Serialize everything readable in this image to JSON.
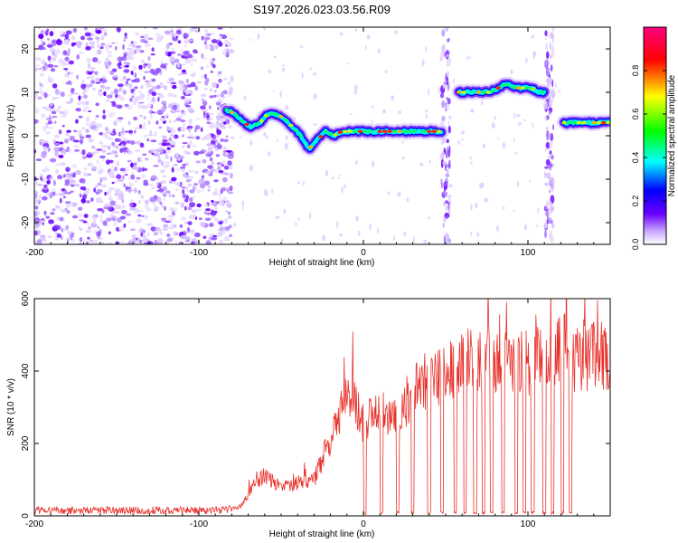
{
  "title": "S197.2026.023.03.56.R09",
  "colors": {
    "line": "#e8302a",
    "axis": "#000000",
    "colormap": [
      "#ffffff",
      "#6a00ff",
      "#0000ff",
      "#00ffff",
      "#00ff00",
      "#ffff00",
      "#ff0000",
      "#ff0080"
    ]
  },
  "chart_data": [
    {
      "type": "heatmap",
      "title": "S197.2026.023.03.56.R09",
      "xlabel": "Height of straight line (km)",
      "ylabel": "Frequency (Hz)",
      "xlim": [
        -200,
        150
      ],
      "ylim": [
        -25,
        25
      ],
      "x_ticks": [
        -200,
        -100,
        0,
        100
      ],
      "y_ticks": [
        -20,
        -10,
        0,
        10,
        20
      ],
      "x_tick_labels": [
        "-200",
        "-100",
        "0",
        "100"
      ],
      "y_tick_labels": [
        "-20",
        "-10",
        "0",
        "10",
        "20"
      ],
      "noise_region_km": [
        -200,
        -80
      ],
      "noise_strips_km": [
        [
          45,
          55
        ],
        [
          108,
          118
        ]
      ],
      "tone_segments": [
        {
          "x": [
            -83,
            -78,
            -73,
            -68,
            -63,
            -58,
            -53,
            -48,
            -43,
            -38,
            -33,
            -28,
            -23,
            -18,
            -13,
            -8,
            -3,
            2,
            7,
            12,
            17,
            22,
            27,
            32,
            37,
            42,
            48
          ],
          "y": [
            6,
            5,
            3,
            2,
            3,
            5,
            5,
            4,
            2,
            0,
            -3,
            -1,
            1,
            0,
            1,
            1,
            1,
            1,
            1,
            1,
            1,
            1,
            1,
            1,
            1,
            1,
            1
          ]
        },
        {
          "x": [
            58,
            62,
            67,
            72,
            77,
            82,
            87,
            92,
            97,
            102,
            107,
            110
          ],
          "y": [
            10,
            10,
            10,
            10,
            10,
            11,
            12,
            11,
            11,
            11,
            10,
            10
          ]
        },
        {
          "x": [
            122,
            130,
            140,
            150
          ],
          "y": [
            3,
            3,
            3,
            3
          ]
        }
      ],
      "colorbar": {
        "label": "Normalized spectral amplitude",
        "range": [
          0,
          1
        ],
        "ticks": [
          0.0,
          0.2,
          0.4,
          0.6,
          0.8
        ],
        "tick_labels": [
          "0.0",
          "0.2",
          "0.4",
          "0.6",
          "0.8"
        ]
      }
    },
    {
      "type": "line",
      "xlabel": "Height of straight line (km)",
      "ylabel": "SNR (10 * v/v)",
      "xlim": [
        -200,
        150
      ],
      "ylim": [
        0,
        600
      ],
      "x_ticks": [
        -200,
        -100,
        0,
        100
      ],
      "y_ticks": [
        0,
        200,
        400,
        600
      ],
      "x_tick_labels": [
        "-200",
        "-100",
        "0",
        "100"
      ],
      "y_tick_labels": [
        "0",
        "200",
        "400",
        "600"
      ],
      "series": [
        {
          "name": "SNR",
          "x": [
            -200,
            -170,
            -140,
            -110,
            -85,
            -75,
            -70,
            -65,
            -60,
            -50,
            -40,
            -30,
            -20,
            -15,
            -10,
            -5,
            0,
            10,
            20,
            30,
            40,
            50,
            60,
            70,
            80,
            90,
            100,
            110,
            120,
            130,
            140,
            150
          ],
          "y": [
            15,
            15,
            15,
            15,
            15,
            25,
            60,
            100,
            110,
            80,
            90,
            100,
            210,
            280,
            320,
            300,
            260,
            290,
            280,
            340,
            380,
            390,
            420,
            440,
            430,
            440,
            420,
            440,
            450,
            440,
            440,
            450
          ],
          "dropouts_km": [
            0,
            10,
            20,
            29,
            39,
            47,
            55,
            61,
            67,
            72,
            77,
            84,
            92,
            97,
            102,
            109,
            114,
            120,
            125
          ]
        }
      ]
    }
  ]
}
